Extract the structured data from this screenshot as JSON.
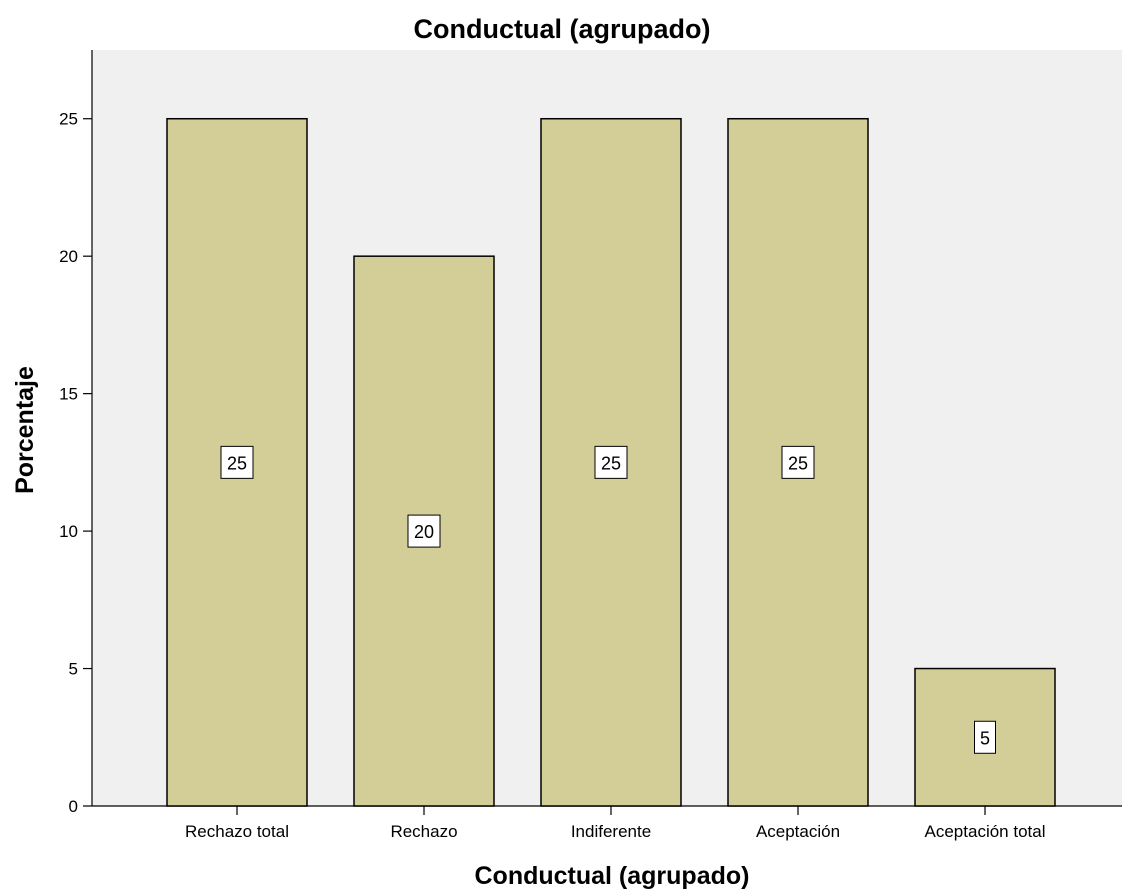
{
  "chart_data": {
    "type": "bar",
    "title": "Conductual (agrupado)",
    "xlabel": "Conductual (agrupado)",
    "ylabel": "Porcentaje",
    "categories": [
      "Rechazo total",
      "Rechazo",
      "Indiferente",
      "Aceptación",
      "Aceptación total"
    ],
    "values": [
      25,
      20,
      25,
      25,
      5
    ],
    "data_labels": [
      "25",
      "20",
      "25",
      "25",
      "5"
    ],
    "ylim": [
      0,
      27.5
    ],
    "yticks": [
      0,
      5,
      10,
      15,
      20,
      25
    ],
    "grid": false,
    "legend": "none",
    "colors": {
      "bar_fill": "#D3CE97",
      "bar_stroke": "#000000",
      "plot_background": "#F0F0F0",
      "label_box_fill": "#FFFFFF"
    }
  }
}
